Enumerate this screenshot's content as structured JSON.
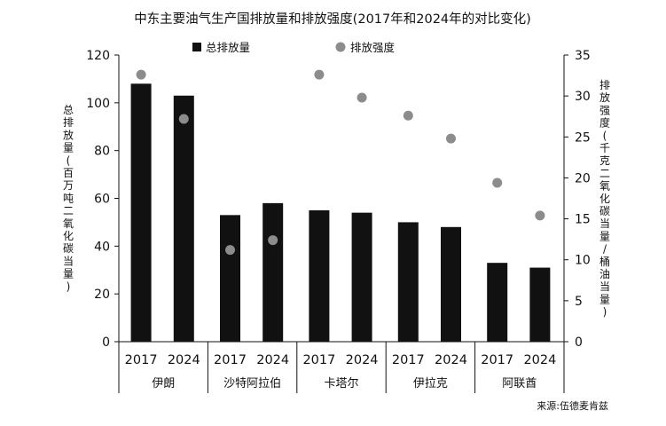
{
  "chart_data": {
    "type": "bar",
    "title": "中东主要油气生产国排放量和排放强度(2017年和2024年的对比变化)",
    "source": "来源:伍德麦肯兹",
    "legend": {
      "placement": "top",
      "bar_label": "总排放量",
      "dot_label": "排放强度"
    },
    "ylabel_left": "总排放量(百万吨二氧化碳当量)",
    "ylabel_right": "排放强度(千克二氧化碳当量/桶油当量)",
    "ylim_left": [
      0,
      120
    ],
    "ylim_right": [
      0,
      35
    ],
    "yticks_left": [
      0,
      20,
      40,
      60,
      80,
      100,
      120
    ],
    "yticks_right": [
      0,
      5,
      10,
      15,
      20,
      25,
      30,
      35
    ],
    "grid": false,
    "groups": [
      {
        "name": "伊朗",
        "years": [
          "2017",
          "2024"
        ]
      },
      {
        "name": "沙特阿拉伯",
        "years": [
          "2017",
          "2024"
        ]
      },
      {
        "name": "卡塔尔",
        "years": [
          "2017",
          "2024"
        ]
      },
      {
        "name": "伊拉克",
        "years": [
          "2017",
          "2024"
        ]
      },
      {
        "name": "阿联酋",
        "years": [
          "2017",
          "2024"
        ]
      }
    ],
    "series": [
      {
        "name": "总排放量",
        "kind": "bar",
        "axis": "left",
        "values": [
          108,
          103,
          53,
          58,
          55,
          54,
          50,
          48,
          33,
          31
        ]
      },
      {
        "name": "排放强度",
        "kind": "dot",
        "axis": "right",
        "values": [
          32.6,
          27.2,
          11.2,
          12.4,
          32.6,
          29.8,
          27.6,
          24.8,
          19.4,
          15.4
        ]
      }
    ],
    "colors": {
      "bar": "#111111",
      "dot": "#8c8c8c",
      "axis": "#111111"
    }
  }
}
